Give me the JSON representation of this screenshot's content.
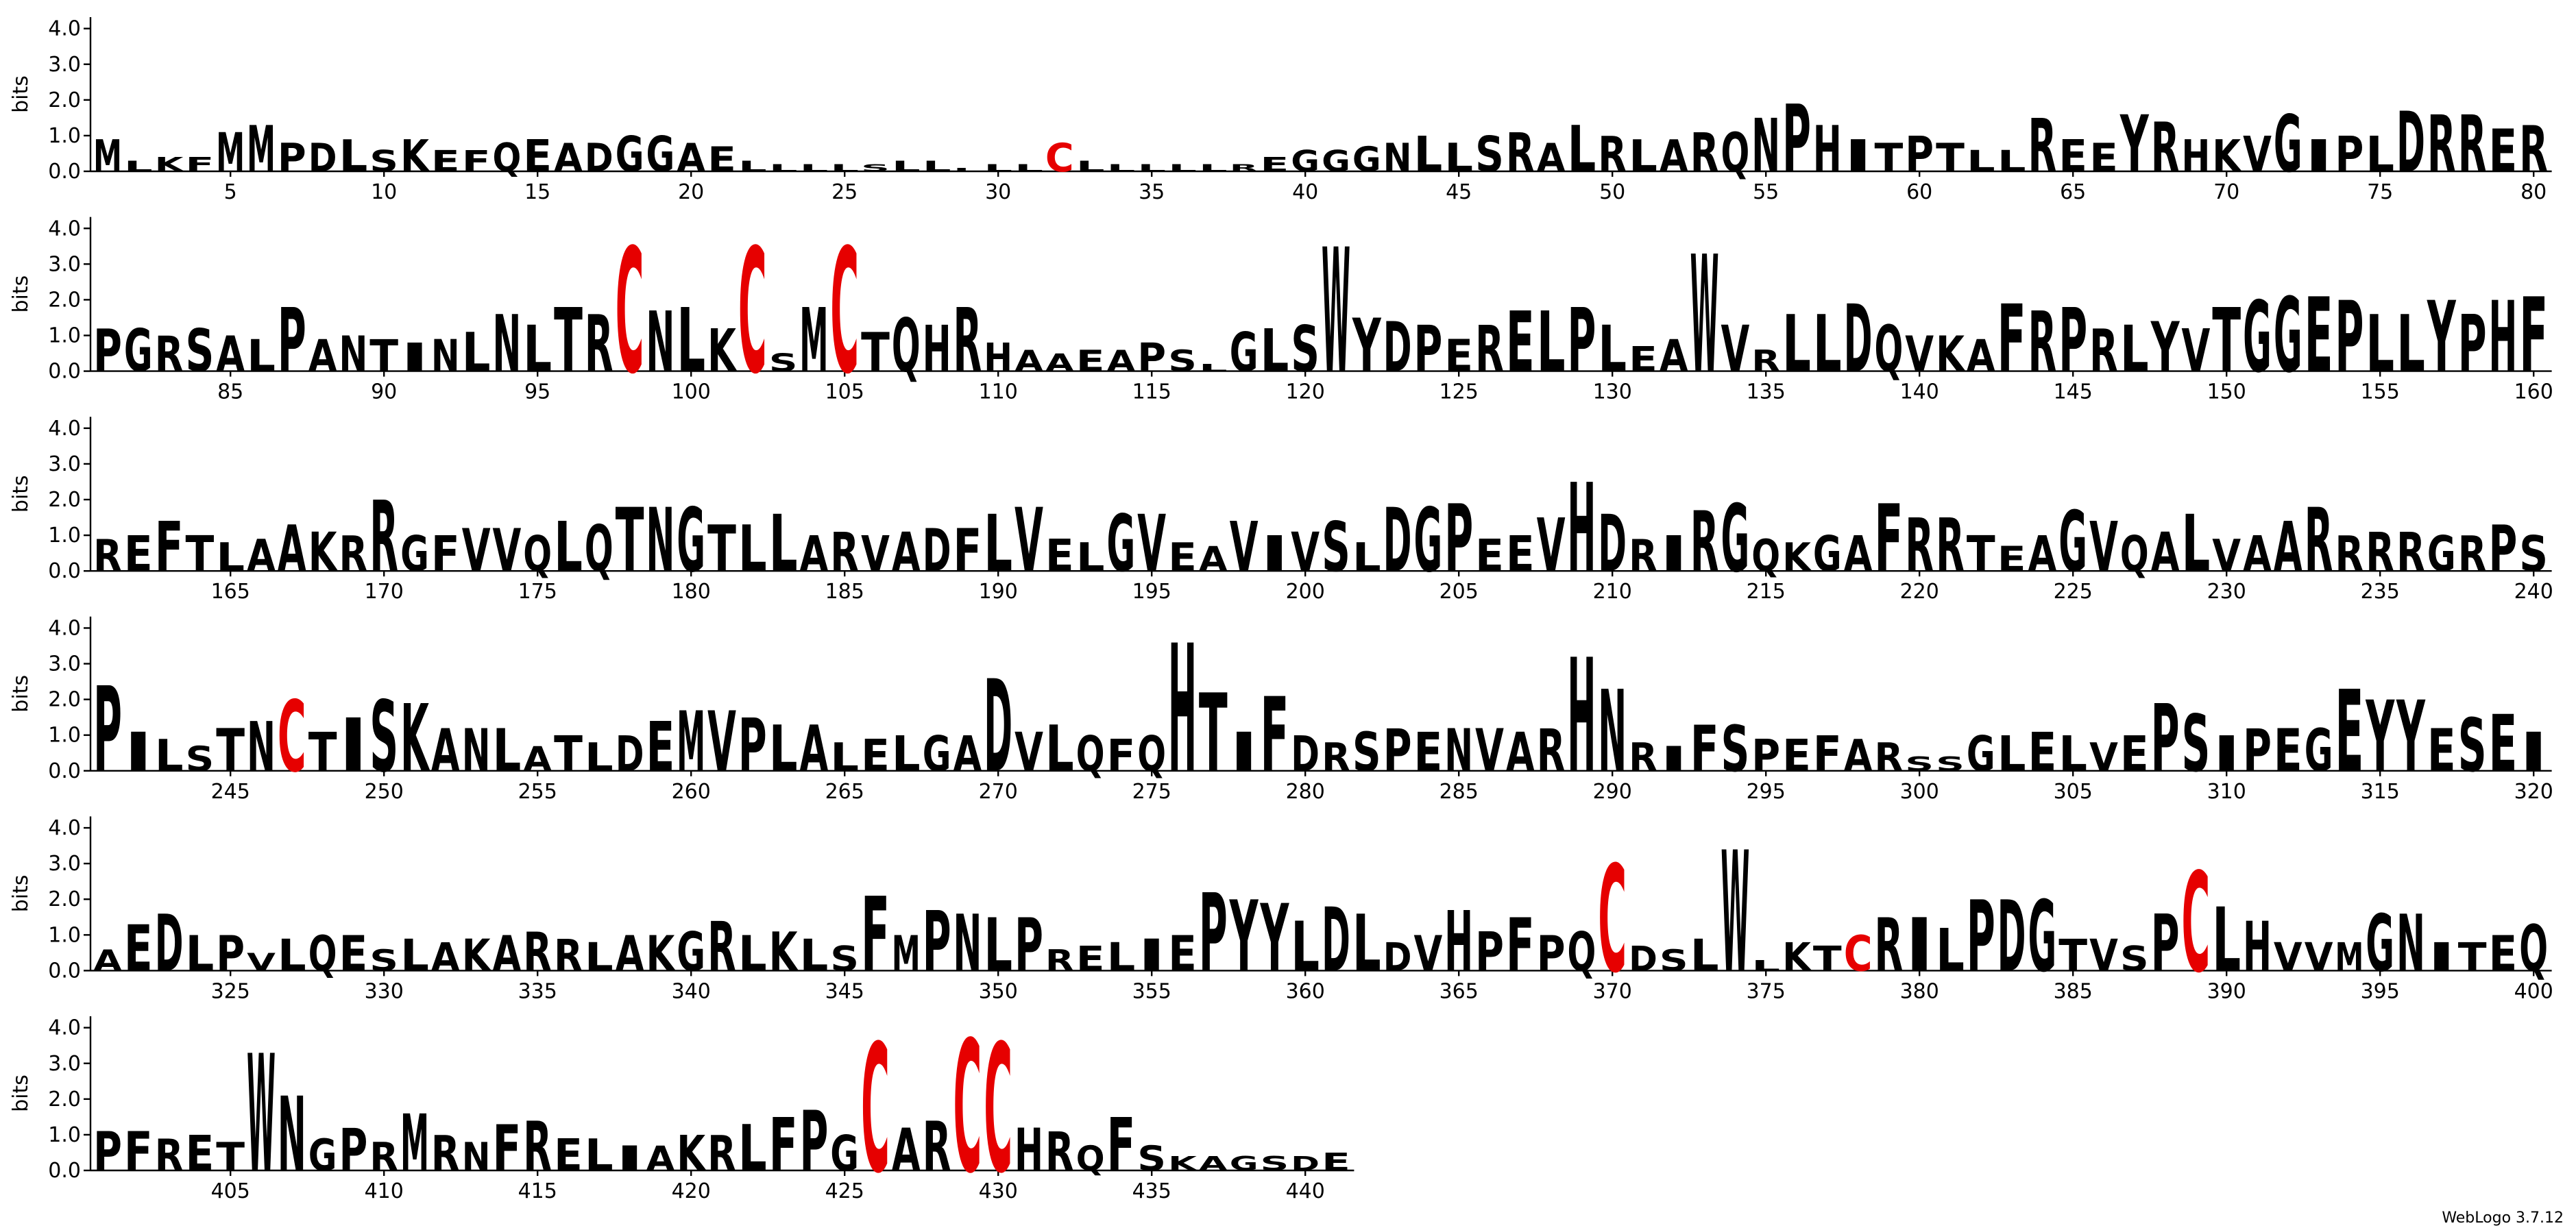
{
  "chart_data": {
    "type": "logo",
    "ylabel": "bits",
    "footer": "WebLogo 3.7.12",
    "color": "#000000",
    "letter_colors": {
      "C": "#e60000"
    },
    "ylim": [
      0,
      4.32
    ],
    "yticks": [
      {
        "value": 0,
        "label": "0.0"
      },
      {
        "value": 1,
        "label": "1.0"
      },
      {
        "value": 2,
        "label": "2.0"
      },
      {
        "value": 3,
        "label": "3.0"
      },
      {
        "value": 4,
        "label": "4.0"
      }
    ],
    "xticks": [
      5,
      10,
      15,
      20,
      25,
      30,
      35,
      40,
      45,
      50,
      55,
      60,
      65,
      70,
      75,
      80,
      85,
      90,
      95,
      100,
      105,
      110,
      115,
      120,
      125,
      130,
      135,
      140,
      145,
      150,
      155,
      160,
      165,
      170,
      175,
      180,
      185,
      190,
      195,
      200,
      205,
      210,
      215,
      220,
      225,
      230,
      235,
      240,
      245,
      250,
      255,
      260,
      265,
      270,
      275,
      280,
      285,
      290,
      295,
      300,
      305,
      310,
      315,
      320,
      325,
      330,
      335,
      340,
      345,
      350,
      355,
      360,
      365,
      370,
      375,
      380,
      385,
      390,
      395,
      400,
      405,
      410,
      415,
      420,
      425,
      430,
      435,
      440
    ],
    "x": [
      1,
      2,
      3,
      4,
      5,
      6,
      7,
      8,
      9,
      10,
      11,
      12,
      13,
      14,
      15,
      16,
      17,
      18,
      19,
      20,
      21,
      22,
      23,
      24,
      25,
      26,
      27,
      28,
      29,
      30,
      31,
      32,
      33,
      34,
      35,
      36,
      37,
      38,
      39,
      40,
      41,
      42,
      43,
      44,
      45,
      46,
      47,
      48,
      49,
      50,
      51,
      52,
      53,
      54,
      55,
      56,
      57,
      58,
      59,
      60,
      61,
      62,
      63,
      64,
      65,
      66,
      67,
      68,
      69,
      70,
      71,
      72,
      73,
      74,
      75,
      76,
      77,
      78,
      79,
      80,
      81,
      82,
      83,
      84,
      85,
      86,
      87,
      88,
      89,
      90,
      91,
      92,
      93,
      94,
      95,
      96,
      97,
      98,
      99,
      100,
      101,
      102,
      103,
      104,
      105,
      106,
      107,
      108,
      109,
      110,
      111,
      112,
      113,
      114,
      115,
      116,
      117,
      118,
      119,
      120,
      121,
      122,
      123,
      124,
      125,
      126,
      127,
      128,
      129,
      130,
      131,
      132,
      133,
      134,
      135,
      136,
      137,
      138,
      139,
      140,
      141,
      142,
      143,
      144,
      145,
      146,
      147,
      148,
      149,
      150,
      151,
      152,
      153,
      154,
      155,
      156,
      157,
      158,
      159,
      160,
      161,
      162,
      163,
      164,
      165,
      166,
      167,
      168,
      169,
      170,
      171,
      172,
      173,
      174,
      175,
      176,
      177,
      178,
      179,
      180,
      181,
      182,
      183,
      184,
      185,
      186,
      187,
      188,
      189,
      190,
      191,
      192,
      193,
      194,
      195,
      196,
      197,
      198,
      199,
      200,
      201,
      202,
      203,
      204,
      205,
      206,
      207,
      208,
      209,
      210,
      211,
      212,
      213,
      214,
      215,
      216,
      217,
      218,
      219,
      220,
      221,
      222,
      223,
      224,
      225,
      226,
      227,
      228,
      229,
      230,
      231,
      232,
      233,
      234,
      235,
      236,
      237,
      238,
      239,
      240,
      241,
      242,
      243,
      244,
      245,
      246,
      247,
      248,
      249,
      250,
      251,
      252,
      253,
      254,
      255,
      256,
      257,
      258,
      259,
      260,
      261,
      262,
      263,
      264,
      265,
      266,
      267,
      268,
      269,
      270,
      271,
      272,
      273,
      274,
      275,
      276,
      277,
      278,
      279,
      280,
      281,
      282,
      283,
      284,
      285,
      286,
      287,
      288,
      289,
      290,
      291,
      292,
      293,
      294,
      295,
      296,
      297,
      298,
      299,
      300,
      301,
      302,
      303,
      304,
      305,
      306,
      307,
      308,
      309,
      310,
      311,
      312,
      313,
      314,
      315,
      316,
      317,
      318,
      319,
      320,
      321,
      322,
      323,
      324,
      325,
      326,
      327,
      328,
      329,
      330,
      331,
      332,
      333,
      334,
      335,
      336,
      337,
      338,
      339,
      340,
      341,
      342,
      343,
      344,
      345,
      346,
      347,
      348,
      349,
      350,
      351,
      352,
      353,
      354,
      355,
      356,
      357,
      358,
      359,
      360,
      361,
      362,
      363,
      364,
      365,
      366,
      367,
      368,
      369,
      370,
      371,
      372,
      373,
      374,
      375,
      376,
      377,
      378,
      379,
      380,
      381,
      382,
      383,
      384,
      385,
      386,
      387,
      388,
      389,
      390,
      391,
      392,
      393,
      394,
      395,
      396,
      397,
      398,
      399,
      400,
      401,
      402,
      403,
      404,
      405,
      406,
      407,
      408,
      409,
      410,
      411,
      412,
      413,
      414,
      415,
      416,
      417,
      418,
      419,
      420,
      421,
      422,
      423,
      424,
      425,
      426,
      427,
      428,
      429,
      430,
      431,
      432,
      433,
      434,
      435,
      436,
      437,
      438,
      439,
      440,
      441
    ],
    "letters": [
      "M",
      "L",
      "K",
      "F",
      "M",
      "M",
      "P",
      "D",
      "L",
      "S",
      "K",
      "E",
      "F",
      "Q",
      "E",
      "A",
      "D",
      "G",
      "G",
      "A",
      "E",
      "L",
      "L",
      "L",
      "L",
      "S",
      "L",
      "L",
      "L",
      "L",
      "L",
      "C",
      "L",
      "L",
      "L",
      "L",
      "L",
      "R",
      "E",
      "G",
      "G",
      "G",
      "N",
      "L",
      "L",
      "S",
      "R",
      "A",
      "L",
      "R",
      "L",
      "A",
      "R",
      "Q",
      "N",
      "P",
      "H",
      "I",
      "T",
      "P",
      "T",
      "L",
      "L",
      "R",
      "E",
      "E",
      "Y",
      "R",
      "H",
      "K",
      "V",
      "G",
      "I",
      "P",
      "L",
      "D",
      "R",
      "R",
      "E",
      "R",
      "P",
      "G",
      "R",
      "S",
      "A",
      "L",
      "P",
      "A",
      "N",
      "T",
      "I",
      "N",
      "L",
      "N",
      "L",
      "T",
      "R",
      "C",
      "N",
      "L",
      "K",
      "C",
      "S",
      "M",
      "C",
      "T",
      "Q",
      "H",
      "R",
      "H",
      "A",
      "A",
      "E",
      "A",
      "P",
      "S",
      "L",
      "G",
      "L",
      "S",
      "W",
      "Y",
      "D",
      "P",
      "E",
      "R",
      "E",
      "L",
      "P",
      "L",
      "E",
      "A",
      "W",
      "V",
      "R",
      "L",
      "L",
      "D",
      "Q",
      "V",
      "K",
      "A",
      "F",
      "R",
      "P",
      "R",
      "L",
      "Y",
      "V",
      "T",
      "G",
      "G",
      "E",
      "P",
      "L",
      "L",
      "Y",
      "P",
      "H",
      "F",
      "R",
      "E",
      "F",
      "T",
      "L",
      "A",
      "A",
      "K",
      "R",
      "R",
      "G",
      "F",
      "V",
      "V",
      "Q",
      "L",
      "Q",
      "T",
      "N",
      "G",
      "T",
      "L",
      "L",
      "A",
      "R",
      "V",
      "A",
      "D",
      "F",
      "L",
      "V",
      "E",
      "L",
      "G",
      "V",
      "E",
      "A",
      "V",
      "I",
      "V",
      "S",
      "L",
      "D",
      "G",
      "P",
      "E",
      "E",
      "V",
      "H",
      "D",
      "R",
      "I",
      "R",
      "G",
      "Q",
      "K",
      "G",
      "A",
      "F",
      "R",
      "R",
      "T",
      "E",
      "A",
      "G",
      "V",
      "Q",
      "A",
      "L",
      "V",
      "A",
      "A",
      "R",
      "R",
      "R",
      "R",
      "G",
      "R",
      "P",
      "S",
      "P",
      "I",
      "L",
      "S",
      "T",
      "N",
      "C",
      "T",
      "I",
      "S",
      "K",
      "A",
      "N",
      "L",
      "A",
      "T",
      "L",
      "D",
      "E",
      "M",
      "V",
      "P",
      "L",
      "A",
      "L",
      "E",
      "L",
      "G",
      "A",
      "D",
      "V",
      "L",
      "Q",
      "F",
      "Q",
      "H",
      "T",
      "I",
      "F",
      "D",
      "R",
      "S",
      "P",
      "E",
      "N",
      "V",
      "A",
      "R",
      "H",
      "N",
      "R",
      "I",
      "F",
      "S",
      "P",
      "E",
      "F",
      "A",
      "R",
      "S",
      "S",
      "G",
      "L",
      "E",
      "L",
      "V",
      "E",
      "P",
      "S",
      "I",
      "P",
      "E",
      "G",
      "E",
      "Y",
      "Y",
      "E",
      "S",
      "E",
      "I",
      "A",
      "E",
      "D",
      "L",
      "P",
      "V",
      "L",
      "Q",
      "E",
      "S",
      "L",
      "A",
      "K",
      "A",
      "R",
      "R",
      "L",
      "A",
      "K",
      "G",
      "R",
      "L",
      "K",
      "L",
      "S",
      "F",
      "M",
      "P",
      "N",
      "L",
      "P",
      "R",
      "E",
      "L",
      "I",
      "E",
      "P",
      "Y",
      "Y",
      "L",
      "D",
      "L",
      "D",
      "V",
      "H",
      "P",
      "F",
      "P",
      "Q",
      "C",
      "D",
      "S",
      "L",
      "W",
      "L",
      "K",
      "T",
      "C",
      "R",
      "I",
      "L",
      "P",
      "D",
      "G",
      "T",
      "V",
      "S",
      "P",
      "C",
      "L",
      "H",
      "V",
      "V",
      "M",
      "G",
      "N",
      "I",
      "T",
      "E",
      "Q",
      "P",
      "F",
      "R",
      "E",
      "T",
      "W",
      "N",
      "G",
      "P",
      "R",
      "M",
      "R",
      "N",
      "F",
      "R",
      "E",
      "L",
      "I",
      "A",
      "K",
      "R",
      "L",
      "F",
      "P",
      "G",
      "C",
      "A",
      "R",
      "C",
      "C",
      "H",
      "R",
      "Q",
      "F",
      "S",
      "K",
      "A",
      "G",
      "S",
      "D",
      "E"
    ],
    "values": [
      0.9,
      0.3,
      0.4,
      0.4,
      1.1,
      1.3,
      0.8,
      0.8,
      0.9,
      0.6,
      0.9,
      0.6,
      0.6,
      0.8,
      0.9,
      0.8,
      0.8,
      1.0,
      1.0,
      0.8,
      0.7,
      0.3,
      0.2,
      0.2,
      0.2,
      0.2,
      0.3,
      0.3,
      0.1,
      0.2,
      0.2,
      0.8,
      0.3,
      0.2,
      0.2,
      0.2,
      0.2,
      0.2,
      0.4,
      0.6,
      0.6,
      0.7,
      0.8,
      1.0,
      0.8,
      1.0,
      1.1,
      0.8,
      1.3,
      1.0,
      0.9,
      0.9,
      1.1,
      1.1,
      1.5,
      1.9,
      1.3,
      0.9,
      0.8,
      1.0,
      0.8,
      0.6,
      0.6,
      1.5,
      0.9,
      0.8,
      1.6,
      1.4,
      0.9,
      0.9,
      1.0,
      1.6,
      0.9,
      1.0,
      1.0,
      1.7,
      1.6,
      1.6,
      1.2,
      1.3,
      1.2,
      1.2,
      1.0,
      1.2,
      1.0,
      0.9,
      1.8,
      0.9,
      1.0,
      0.9,
      0.8,
      0.9,
      1.1,
      1.6,
      1.3,
      1.8,
      1.6,
      3.5,
      1.7,
      1.8,
      1.2,
      3.5,
      0.5,
      1.8,
      3.5,
      1.1,
      1.5,
      1.3,
      1.8,
      0.8,
      0.6,
      0.5,
      0.6,
      0.6,
      0.8,
      0.6,
      0.2,
      1.1,
      1.2,
      1.3,
      3.5,
      1.5,
      1.4,
      1.3,
      0.9,
      1.3,
      1.7,
      1.7,
      1.8,
      1.3,
      0.7,
      0.9,
      3.3,
      1.3,
      0.6,
      1.6,
      1.6,
      1.9,
      1.3,
      1.0,
      1.0,
      0.9,
      1.9,
      1.7,
      1.8,
      1.2,
      1.3,
      1.4,
      1.2,
      1.8,
      2.0,
      2.1,
      2.1,
      2.0,
      1.6,
      1.6,
      2.0,
      1.6,
      2.0,
      2.1,
      0.9,
      1.0,
      1.4,
      1.0,
      0.8,
      0.9,
      1.3,
      1.1,
      1.0,
      2.0,
      1.0,
      1.0,
      1.2,
      1.2,
      1.0,
      1.4,
      1.3,
      1.8,
      1.8,
      1.8,
      1.3,
      1.3,
      1.6,
      1.0,
      1.1,
      1.0,
      1.1,
      1.2,
      1.2,
      1.6,
      1.8,
      0.9,
      0.8,
      1.6,
      1.6,
      0.8,
      0.7,
      1.4,
      1.0,
      1.1,
      1.4,
      0.8,
      1.8,
      1.8,
      1.9,
      0.9,
      1.0,
      1.5,
      2.5,
      1.6,
      0.9,
      1.0,
      1.7,
      1.9,
      0.9,
      0.8,
      1.0,
      1.0,
      1.9,
      1.5,
      1.5,
      1.0,
      0.7,
      1.0,
      1.7,
      1.4,
      1.0,
      1.1,
      1.6,
      0.9,
      1.0,
      1.4,
      1.8,
      1.0,
      1.1,
      1.1,
      1.0,
      1.0,
      1.3,
      1.0,
      2.4,
      1.1,
      0.9,
      0.7,
      1.2,
      1.4,
      2.0,
      1.1,
      1.5,
      2.0,
      1.9,
      1.2,
      1.2,
      1.2,
      0.7,
      1.0,
      0.8,
      1.0,
      1.4,
      1.7,
      1.7,
      1.5,
      1.3,
      1.3,
      0.8,
      0.9,
      1.0,
      1.0,
      1.0,
      2.6,
      1.1,
      1.3,
      1.0,
      0.9,
      1.0,
      3.6,
      2.2,
      1.1,
      2.1,
      1.0,
      0.8,
      1.1,
      1.2,
      1.1,
      1.2,
      1.2,
      1.1,
      1.2,
      3.2,
      2.3,
      0.8,
      0.7,
      1.3,
      1.3,
      0.9,
      0.9,
      1.0,
      0.9,
      0.8,
      0.4,
      0.4,
      1.0,
      1.0,
      1.1,
      1.0,
      0.8,
      1.0,
      1.9,
      1.6,
      1.0,
      1.2,
      1.2,
      1.2,
      2.3,
      2.0,
      2.0,
      1.2,
      1.5,
      1.6,
      1.1,
      0.6,
      1.3,
      1.6,
      1.0,
      1.0,
      0.5,
      0.9,
      1.0,
      1.0,
      0.6,
      0.9,
      0.8,
      0.9,
      1.0,
      1.1,
      0.9,
      0.8,
      1.0,
      1.0,
      1.1,
      1.4,
      1.0,
      1.1,
      0.9,
      0.7,
      2.1,
      1.0,
      1.7,
      1.6,
      1.5,
      1.5,
      0.6,
      0.7,
      0.8,
      0.9,
      1.0,
      2.2,
      2.0,
      1.9,
      1.4,
      1.8,
      1.6,
      0.8,
      1.0,
      1.7,
      1.1,
      1.5,
      1.0,
      1.1,
      3.0,
      0.7,
      0.6,
      0.9,
      3.4,
      0.3,
      0.8,
      0.7,
      1.0,
      1.5,
      1.5,
      1.2,
      2.0,
      2.0,
      2.0,
      0.9,
      0.9,
      0.7,
      1.6,
      2.8,
      1.8,
      1.4,
      0.8,
      0.8,
      0.8,
      1.6,
      1.6,
      0.8,
      0.8,
      1.0,
      1.3,
      1.1,
      1.1,
      0.9,
      1.0,
      0.8,
      3.3,
      2.1,
      0.9,
      1.2,
      0.8,
      1.6,
      1.0,
      0.8,
      1.3,
      1.4,
      0.9,
      0.9,
      0.7,
      0.7,
      1.0,
      1.0,
      1.3,
      1.5,
      1.7,
      1.0,
      3.6,
      1.2,
      1.4,
      3.7,
      3.6,
      1.2,
      1.1,
      0.7,
      1.5,
      0.7,
      0.4,
      0.4,
      0.4,
      0.4,
      0.4,
      0.5
    ]
  }
}
